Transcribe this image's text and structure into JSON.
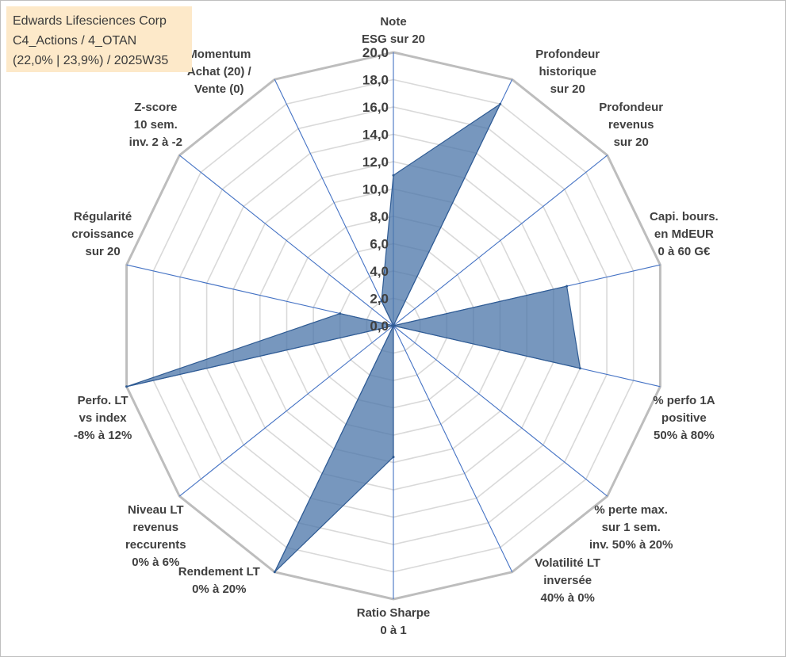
{
  "title_box": {
    "line1": "Edwards Lifesciences Corp",
    "line2": "C4_Actions / 4_OTAN",
    "line3": "(22,0% | 23,9%) / 2025W35"
  },
  "chart_data": {
    "type": "radar",
    "r_min": 0,
    "r_max": 20,
    "r_step": 2,
    "ticks": [
      "0,0",
      "2,0",
      "4,0",
      "6,0",
      "8,0",
      "10,0",
      "12,0",
      "14,0",
      "16,0",
      "18,0",
      "20,0"
    ],
    "grid": true,
    "categories": [
      [
        "Note",
        "ESG sur 20"
      ],
      [
        "Profondeur",
        "historique",
        "sur 20"
      ],
      [
        "Profondeur",
        "revenus",
        "sur 20"
      ],
      [
        "Capi. bours.",
        "en MdEUR",
        "0 à 60 G€"
      ],
      [
        "% perfo 1A",
        "positive",
        "50% à 80%"
      ],
      [
        "% perte max.",
        "sur 1 sem.",
        "inv. 50% à 20%"
      ],
      [
        "Volatilité LT",
        "inversée",
        "40% à 0%"
      ],
      [
        "Ratio Sharpe",
        "0 à 1"
      ],
      [
        "Rendement LT",
        "0% à 20%"
      ],
      [
        "Niveau LT",
        "revenus",
        "reccurents",
        "0% à 6%"
      ],
      [
        "Perfo. LT",
        "vs index",
        "-8% à 12%"
      ],
      [
        "Régularité",
        "croissance",
        "sur 20"
      ],
      [
        "Z-score",
        "10 sem.",
        "inv. 2 à -2"
      ],
      [
        "Momentum",
        "Achat (20) /",
        "Vente (0)"
      ]
    ],
    "series": [
      {
        "values": [
          11,
          18,
          0,
          13,
          14,
          0,
          0,
          9.6,
          20,
          0,
          20,
          4,
          0,
          2
        ]
      }
    ],
    "colors": {
      "fill": "#4a74a8",
      "stroke": "#2f5b93",
      "grid_outer": "#bdbdbd",
      "grid_inner": "#d9d9d9",
      "spoke": "#4472c4"
    }
  }
}
